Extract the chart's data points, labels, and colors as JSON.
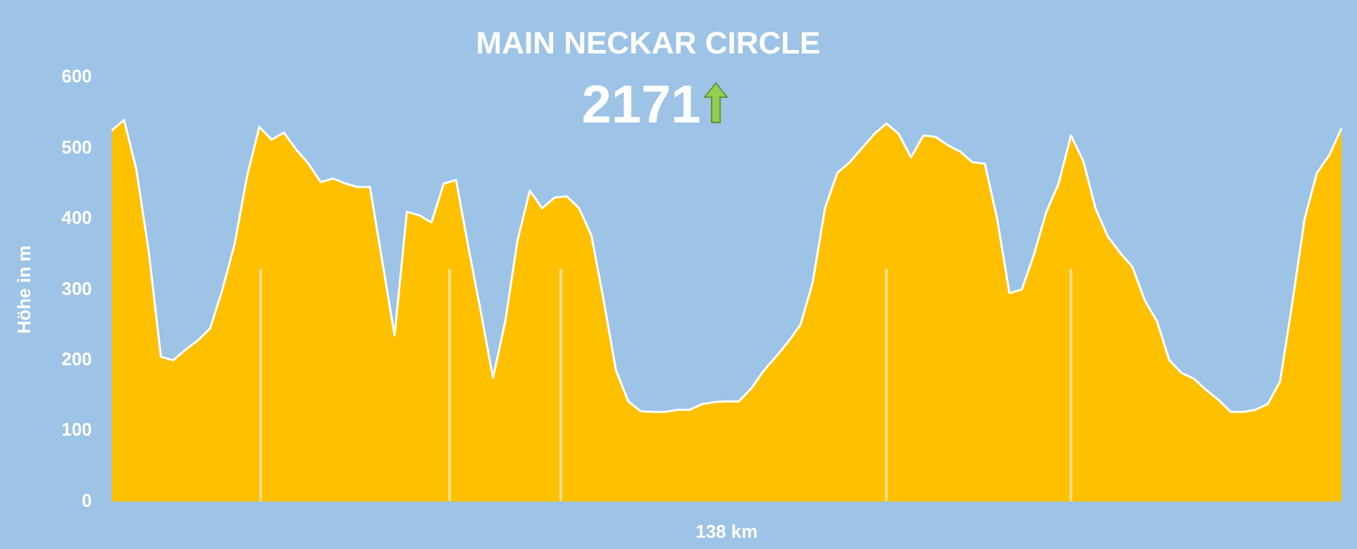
{
  "chart_data": {
    "type": "area",
    "title": "MAIN NECKAR CIRCLE",
    "subtitle": "2171",
    "xlabel": "138 km",
    "ylabel": "Höhe in m",
    "categories": [
      null,
      null,
      null,
      null,
      null,
      null,
      null,
      null,
      null,
      null,
      null,
      null,
      null,
      null,
      null,
      null,
      null,
      null,
      null,
      null,
      null,
      null,
      null,
      null,
      null,
      null,
      null,
      null,
      null,
      null,
      null,
      null,
      null,
      null,
      null,
      null,
      null,
      null,
      null,
      null,
      null,
      null,
      null,
      null,
      null,
      null,
      null,
      null,
      null,
      null,
      null,
      null,
      null,
      null,
      null,
      null,
      null,
      null,
      null,
      null,
      null,
      null,
      null,
      null,
      null,
      null,
      null,
      null,
      null,
      null,
      null,
      null,
      null,
      null,
      null,
      null,
      null,
      null,
      null,
      null,
      null,
      null,
      null,
      null,
      null,
      null,
      null,
      null,
      null,
      null,
      null,
      null,
      null,
      null,
      null,
      null,
      null,
      null,
      null,
      null,
      null
    ],
    "values": [
      525,
      540,
      470,
      355,
      205,
      200,
      215,
      228,
      245,
      300,
      365,
      460,
      530,
      512,
      522,
      498,
      478,
      452,
      457,
      450,
      445,
      445,
      340,
      235,
      410,
      405,
      395,
      450,
      455,
      360,
      270,
      175,
      255,
      370,
      440,
      415,
      430,
      432,
      415,
      377,
      285,
      186,
      142,
      128,
      127,
      127,
      130,
      130,
      138,
      141,
      142,
      142,
      160,
      185,
      205,
      226,
      250,
      310,
      415,
      465,
      480,
      500,
      520,
      535,
      520,
      487,
      518,
      516,
      504,
      495,
      480,
      478,
      400,
      295,
      300,
      350,
      410,
      450,
      518,
      482,
      415,
      375,
      352,
      332,
      285,
      255,
      200,
      182,
      174,
      158,
      144,
      127,
      127,
      130,
      138,
      170,
      281,
      400,
      465,
      490,
      528
    ],
    "color": "#ffc000",
    "ylim": [
      0,
      600
    ],
    "yticks": [
      0,
      100,
      200,
      300,
      400,
      500,
      600
    ],
    "grid": false
  }
}
